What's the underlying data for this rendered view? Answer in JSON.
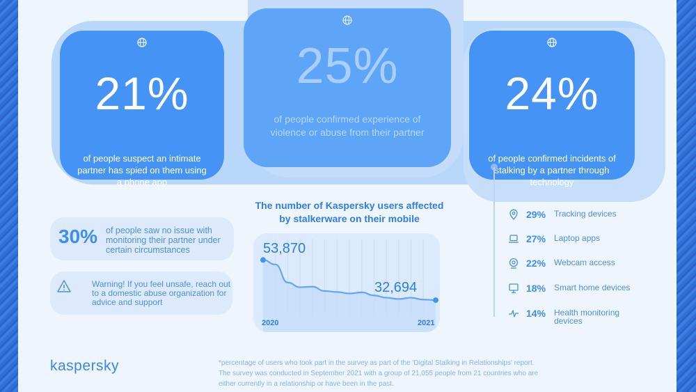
{
  "colors": {
    "primary": "#4594f5",
    "accent": "#2e7ee6",
    "background": "#eef5fd"
  },
  "stats": [
    {
      "value": "21%",
      "text": "of people suspect an intimate partner has spied on them using a phone app",
      "icon": "globe-icon"
    },
    {
      "value": "25%",
      "text": "of people confirmed experience of violence or abuse from their partner",
      "icon": "globe-icon"
    },
    {
      "value": "24%",
      "text": "of people confirmed incidents of stalking by a partner through technology",
      "icon": "globe-icon"
    }
  ],
  "side_notes": {
    "no_issue": {
      "value": "30%",
      "text": "of people saw no issue with monitoring their partner under certain circumstances"
    },
    "warning": {
      "icon": "warning-icon",
      "text": "Warning! If you feel unsafe, reach out to a domestic abuse organization for advice and support"
    }
  },
  "chart_data": {
    "type": "line",
    "title": "The number of Kaspersky users affected by stalkerware on their mobile",
    "x": [
      "2020",
      "2021"
    ],
    "start": {
      "label": "53,870",
      "value": 53870
    },
    "end": {
      "label": "32,694",
      "value": 32694
    },
    "curve_values": [
      53870,
      51500,
      42000,
      39500,
      39800,
      37500,
      37000,
      36200,
      36800,
      35200,
      34000,
      33300,
      34000,
      33000,
      32694
    ]
  },
  "tech_list": [
    {
      "icon": "location-pin-icon",
      "pct": "29%",
      "label": "Tracking devices"
    },
    {
      "icon": "laptop-icon",
      "pct": "27%",
      "label": "Laptop apps"
    },
    {
      "icon": "webcam-icon",
      "pct": "22%",
      "label": "Webcam access"
    },
    {
      "icon": "monitor-icon",
      "pct": "18%",
      "label": "Smart home devices"
    },
    {
      "icon": "heartbeat-icon",
      "pct": "14%",
      "label": "Health monitoring devices"
    }
  ],
  "footer": {
    "logo": "kaspersky",
    "note": "*percentage of users who took part in the survey as part of the 'Digital Stalking in Relationships' report. The survey was conducted in September 2021 with a group of 21,055 people from 21 countries who are either currently in a relationship or have been in the past."
  }
}
